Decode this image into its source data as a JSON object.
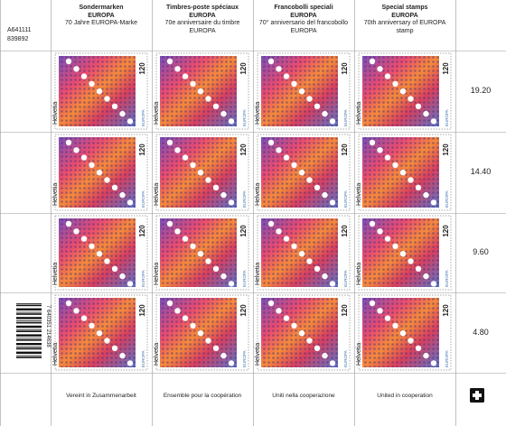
{
  "sheet": {
    "control_number": [
      "A641111",
      "839892"
    ],
    "headers": [
      {
        "kind": "Sondermarken",
        "series": "EUROPA",
        "subtitle": "70 Jahre EUROPA-Marke"
      },
      {
        "kind": "Timbres-poste spéciaux",
        "series": "EUROPA",
        "subtitle": "70e anniversaire du timbre EUROPA"
      },
      {
        "kind": "Francobolli speciali",
        "series": "EUROPA",
        "subtitle": "70° anniversario del francobollo EUROPA"
      },
      {
        "kind": "Special stamps",
        "series": "EUROPA",
        "subtitle": "70th anniversary of EUROPA stamp"
      }
    ],
    "row_totals": [
      "19.20",
      "14.40",
      "9.60",
      "4.80"
    ],
    "stamp": {
      "denomination": "120",
      "country": "Helvetia",
      "logo": "EUROPA"
    },
    "barcode_number": "7 640351 214638",
    "footer": [
      "Vereint in Zusammenarbeit",
      "Ensemble pour la coopération",
      "Uniti nella cooperazione",
      "United in cooperation"
    ]
  }
}
